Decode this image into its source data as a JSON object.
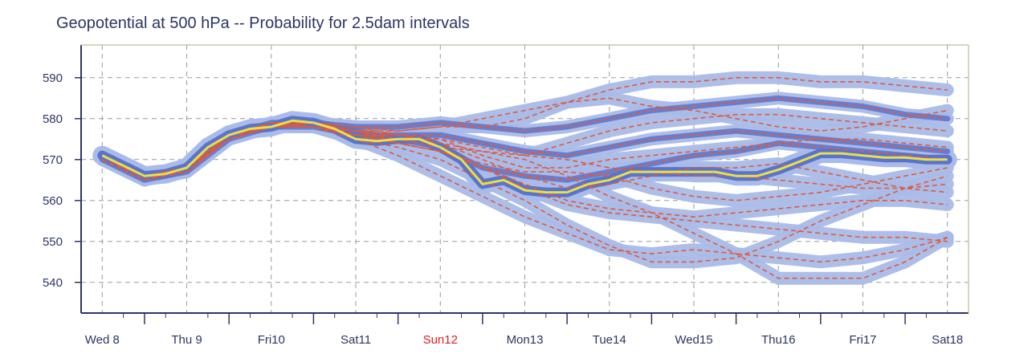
{
  "chart_data": {
    "type": "line",
    "title": "Geopotential at 500 hPa -- Probability for 2.5dam intervals",
    "xlabel": "",
    "ylabel": "",
    "x_tick_labels": [
      "Wed 8",
      "Thu 9",
      "Fri10",
      "Sat11",
      "Sun12",
      "Mon13",
      "Tue14",
      "Wed15",
      "Thu16",
      "Fri17",
      "Sat18"
    ],
    "highlighted_tick": "Sun12",
    "y_ticks": [
      540,
      550,
      560,
      570,
      580,
      590
    ],
    "xlim": [
      -0.25,
      10.25
    ],
    "ylim": [
      532.5,
      598
    ],
    "grid": true,
    "colors": {
      "deterministic": "#e6e04a",
      "members": "#e05a3a",
      "probability_low": "#a9bbe8",
      "probability_high": "#5a73cc",
      "axis": "#2b3566",
      "grid": "#9a9a9a",
      "sunday": "#e02020"
    },
    "series": [
      {
        "role": "deterministic",
        "x": [
          0,
          0.25,
          0.5,
          0.75,
          1.0,
          1.25,
          1.5,
          1.75,
          2.0,
          2.25,
          2.5,
          2.75,
          3.0,
          3.25,
          3.5,
          3.75,
          4.0,
          4.25,
          4.5,
          4.75,
          5.0,
          5.25,
          5.5,
          5.75,
          6.0,
          6.25,
          6.5,
          6.75,
          7.0,
          7.25,
          7.5,
          7.75,
          8.0,
          8.25,
          8.5,
          8.75,
          9.0,
          9.25,
          9.5,
          9.75,
          10.0
        ],
        "values": [
          571,
          568.5,
          566,
          566.5,
          568,
          573,
          576,
          577.5,
          578,
          579.5,
          579,
          577.5,
          575,
          574.5,
          575,
          575,
          573,
          570,
          564,
          565,
          562.5,
          562,
          562,
          564,
          565,
          567,
          567,
          567,
          567,
          567,
          566,
          566,
          567.5,
          569.5,
          571.5,
          571.5,
          571,
          570.5,
          570.5,
          570,
          570
        ]
      },
      {
        "role": "ensemble",
        "x": [
          0,
          0.5,
          1,
          1.5,
          2,
          2.5,
          3,
          3.5,
          4,
          4.5,
          5,
          5.5,
          6,
          6.5,
          7,
          7.5,
          8,
          8.5,
          9,
          9.5,
          10
        ],
        "members": [
          [
            571,
            566,
            568,
            576,
            578,
            579,
            577,
            575,
            573,
            568,
            566,
            565,
            567,
            569,
            571,
            572,
            574,
            573,
            572,
            571,
            570
          ],
          [
            570,
            565,
            567,
            575,
            578,
            578,
            576,
            576,
            576,
            574,
            572,
            571,
            573,
            575,
            576,
            577,
            576,
            575,
            574,
            573,
            572
          ],
          [
            571,
            566,
            568,
            576,
            579,
            579,
            578,
            578,
            579,
            578,
            577,
            578,
            580,
            582,
            583,
            584,
            585,
            584,
            583,
            581,
            580
          ],
          [
            570,
            566,
            567,
            575,
            578,
            579,
            577,
            574,
            572,
            568,
            564,
            560,
            558,
            557,
            556,
            557,
            558,
            559,
            560,
            560,
            559
          ],
          [
            571,
            565,
            568,
            576,
            578,
            578,
            576,
            575,
            575,
            571,
            568,
            568,
            570,
            571,
            572,
            573,
            574,
            575,
            575,
            574,
            573
          ],
          [
            570,
            566,
            567,
            575,
            579,
            579,
            578,
            577,
            578,
            578,
            580,
            584,
            587,
            589,
            589,
            590,
            590,
            589,
            589,
            588,
            587
          ],
          [
            571,
            565,
            568,
            576,
            578,
            579,
            575,
            571,
            566,
            561,
            556,
            552,
            548,
            547,
            548,
            547,
            546,
            545,
            546,
            548,
            551
          ],
          [
            570,
            566,
            568,
            576,
            579,
            578,
            577,
            576,
            574,
            570,
            566,
            563,
            564,
            566,
            568,
            568,
            569,
            567,
            565,
            563,
            562
          ],
          [
            571,
            566,
            567,
            575,
            578,
            579,
            576,
            574,
            572,
            568,
            563,
            559,
            557,
            556,
            555,
            554,
            553,
            552,
            551,
            551,
            550
          ],
          [
            571,
            565,
            568,
            576,
            578,
            579,
            577,
            576,
            575,
            573,
            571,
            574,
            577,
            579,
            580,
            581,
            581,
            580,
            579,
            578,
            577
          ],
          [
            570,
            566,
            567,
            576,
            579,
            578,
            575,
            573,
            570,
            565,
            560,
            554,
            549,
            545,
            545,
            546,
            550,
            555,
            559,
            563,
            566
          ],
          [
            571,
            566,
            568,
            575,
            578,
            579,
            578,
            576,
            574,
            572,
            571,
            570,
            568,
            567,
            566,
            566,
            565,
            564,
            563,
            563,
            564
          ],
          [
            570,
            565,
            568,
            576,
            578,
            579,
            577,
            575,
            573,
            572,
            570,
            566,
            561,
            557,
            552,
            547,
            541,
            541,
            541,
            545,
            551
          ],
          [
            571,
            566,
            567,
            576,
            579,
            579,
            577,
            577,
            578,
            580,
            582,
            584,
            585,
            583,
            582,
            580,
            578,
            577,
            578,
            580,
            582
          ],
          [
            571,
            566,
            568,
            575,
            578,
            578,
            576,
            574,
            572,
            569,
            567,
            567,
            566,
            563,
            561,
            560,
            561,
            562,
            564,
            566,
            568
          ]
        ]
      }
    ]
  }
}
